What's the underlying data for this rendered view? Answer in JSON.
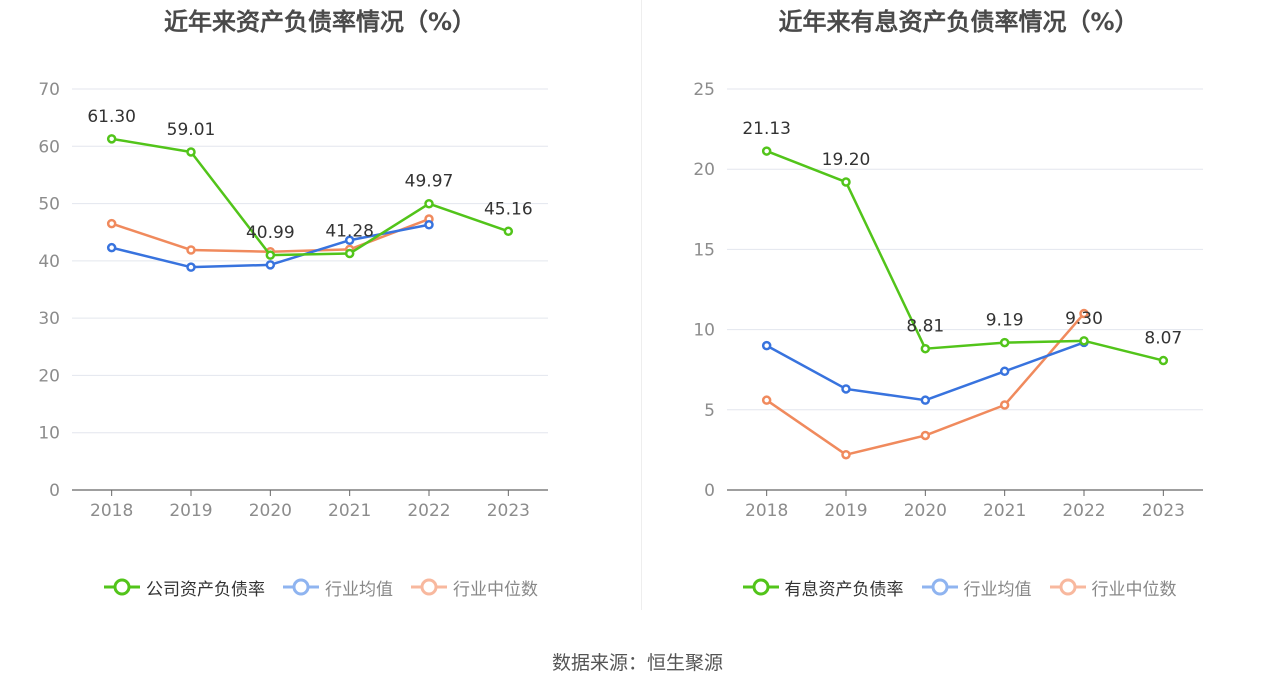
{
  "source": "数据来源：恒生聚源",
  "colors": {
    "company": "#52c41a",
    "avg": "#3873de",
    "median": "#f08a5d",
    "avg_legend": "#8fb4f0",
    "median_legend": "#f8b89e"
  },
  "chart_data": [
    {
      "type": "line",
      "title": "近年来资产负债率情况（%）",
      "categories": [
        "2018",
        "2019",
        "2020",
        "2021",
        "2022",
        "2023"
      ],
      "ylim": [
        0,
        70
      ],
      "yticks": [
        "0",
        "10",
        "20",
        "30",
        "40",
        "50",
        "60",
        "70"
      ],
      "grid": true,
      "legend_position": "bottom",
      "series": [
        {
          "name": "公司资产负债率",
          "values": [
            61.3,
            59.01,
            40.99,
            41.28,
            49.97,
            45.16
          ],
          "labels": [
            "61.30",
            "59.01",
            "40.99",
            "41.28",
            "49.97",
            "45.16"
          ],
          "color": "#52c41a"
        },
        {
          "name": "行业均值",
          "values": [
            42.3,
            38.9,
            39.3,
            43.6,
            46.3,
            null
          ],
          "color": "#3873de"
        },
        {
          "name": "行业中位数",
          "values": [
            46.5,
            41.9,
            41.6,
            42.0,
            47.3,
            null
          ],
          "color": "#f08a5d"
        }
      ]
    },
    {
      "type": "line",
      "title": "近年来有息资产负债率情况（%）",
      "categories": [
        "2018",
        "2019",
        "2020",
        "2021",
        "2022",
        "2023"
      ],
      "ylim": [
        0,
        25
      ],
      "yticks": [
        "0",
        "5",
        "10",
        "15",
        "20",
        "25"
      ],
      "grid": true,
      "legend_position": "bottom",
      "series": [
        {
          "name": "有息资产负债率",
          "values": [
            21.13,
            19.2,
            8.81,
            9.19,
            9.3,
            8.07
          ],
          "labels": [
            "21.13",
            "19.20",
            "8.81",
            "9.19",
            "9.30",
            "8.07"
          ],
          "color": "#52c41a"
        },
        {
          "name": "行业均值",
          "values": [
            9.0,
            6.3,
            5.6,
            7.4,
            9.2,
            null
          ],
          "color": "#3873de"
        },
        {
          "name": "行业中位数",
          "values": [
            5.6,
            2.2,
            3.4,
            5.3,
            11.0,
            null
          ],
          "color": "#f08a5d"
        }
      ]
    }
  ]
}
